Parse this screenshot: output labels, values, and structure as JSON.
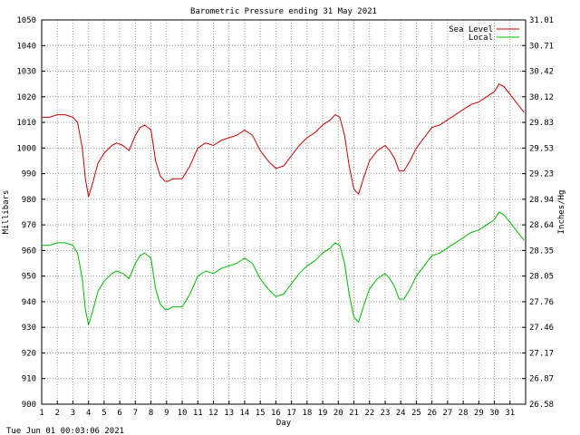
{
  "chart_data": {
    "type": "line",
    "title": "Barometric Pressure ending 31 May 2021",
    "xlabel": "Day",
    "ylabel": "Millibars",
    "ylabel_right": "Inches/Hg",
    "timestamp": "Tue Jun 01 00:03:06 2021",
    "x_ticks": [
      "1",
      "2",
      "3",
      "4",
      "5",
      "6",
      "7",
      "8",
      "9",
      "10",
      "11",
      "12",
      "13",
      "14",
      "15",
      "16",
      "17",
      "18",
      "19",
      "20",
      "21",
      "22",
      "23",
      "24",
      "25",
      "26",
      "27",
      "28",
      "29",
      "30",
      "31"
    ],
    "y_ticks_left": [
      "900",
      "910",
      "920",
      "930",
      "940",
      "950",
      "960",
      "970",
      "980",
      "990",
      "1000",
      "1010",
      "1020",
      "1030",
      "1040",
      "1050"
    ],
    "y_ticks_right": [
      "26.58",
      "26.87",
      "27.17",
      "27.46",
      "27.76",
      "28.05",
      "28.35",
      "28.64",
      "28.94",
      "29.23",
      "29.53",
      "29.83",
      "30.12",
      "30.42",
      "30.71",
      "31.01"
    ],
    "xlim": [
      1,
      32
    ],
    "ylim": [
      900,
      1050
    ],
    "grid": true,
    "legend_position": "top-right",
    "x": [
      1.0,
      1.5,
      2.0,
      2.5,
      3.0,
      3.3,
      3.6,
      3.8,
      4.0,
      4.3,
      4.6,
      5.0,
      5.5,
      5.8,
      6.2,
      6.6,
      7.0,
      7.3,
      7.6,
      8.0,
      8.3,
      8.6,
      8.9,
      9.1,
      9.4,
      9.7,
      10.0,
      10.5,
      11.0,
      11.5,
      12.0,
      12.5,
      13.0,
      13.5,
      14.0,
      14.5,
      15.0,
      15.5,
      16.0,
      16.5,
      17.0,
      17.5,
      18.0,
      18.5,
      19.0,
      19.5,
      19.8,
      20.1,
      20.4,
      20.7,
      21.0,
      21.3,
      21.6,
      22.0,
      22.5,
      23.0,
      23.3,
      23.6,
      23.9,
      24.2,
      24.6,
      25.0,
      25.5,
      26.0,
      26.5,
      27.0,
      27.5,
      28.0,
      28.5,
      29.0,
      29.5,
      30.0,
      30.3,
      30.6,
      31.0,
      31.5,
      31.9
    ],
    "series": [
      {
        "name": "Sea Level",
        "color": "#cc0000",
        "values": [
          1012,
          1012,
          1013,
          1013,
          1012,
          1010,
          1000,
          988,
          981,
          987,
          994,
          998,
          1001,
          1002,
          1001,
          999,
          1005,
          1008,
          1009,
          1007,
          995,
          989,
          987,
          987,
          988,
          988,
          988,
          993,
          1000,
          1002,
          1001,
          1003,
          1004,
          1005,
          1007,
          1005,
          999,
          995,
          992,
          993,
          997,
          1001,
          1004,
          1006,
          1009,
          1011,
          1013,
          1012,
          1005,
          993,
          984,
          982,
          988,
          995,
          999,
          1001,
          999,
          996,
          991,
          991,
          995,
          1000,
          1004,
          1008,
          1009,
          1011,
          1013,
          1015,
          1017,
          1018,
          1020,
          1022,
          1025,
          1024,
          1021,
          1017,
          1014
        ]
      },
      {
        "name": "Local",
        "color": "#00bb00",
        "values": [
          962,
          962,
          963,
          963,
          962,
          959,
          949,
          937,
          931,
          937,
          944,
          948,
          951,
          952,
          951,
          949,
          955,
          958,
          959,
          957,
          945,
          939,
          937,
          937,
          938,
          938,
          938,
          943,
          950,
          952,
          951,
          953,
          954,
          955,
          957,
          955,
          949,
          945,
          942,
          943,
          947,
          951,
          954,
          956,
          959,
          961,
          963,
          962,
          955,
          943,
          934,
          932,
          938,
          945,
          949,
          951,
          949,
          946,
          941,
          941,
          945,
          950,
          954,
          958,
          959,
          961,
          963,
          965,
          967,
          968,
          970,
          972,
          975,
          974,
          971,
          967,
          964
        ]
      }
    ]
  }
}
